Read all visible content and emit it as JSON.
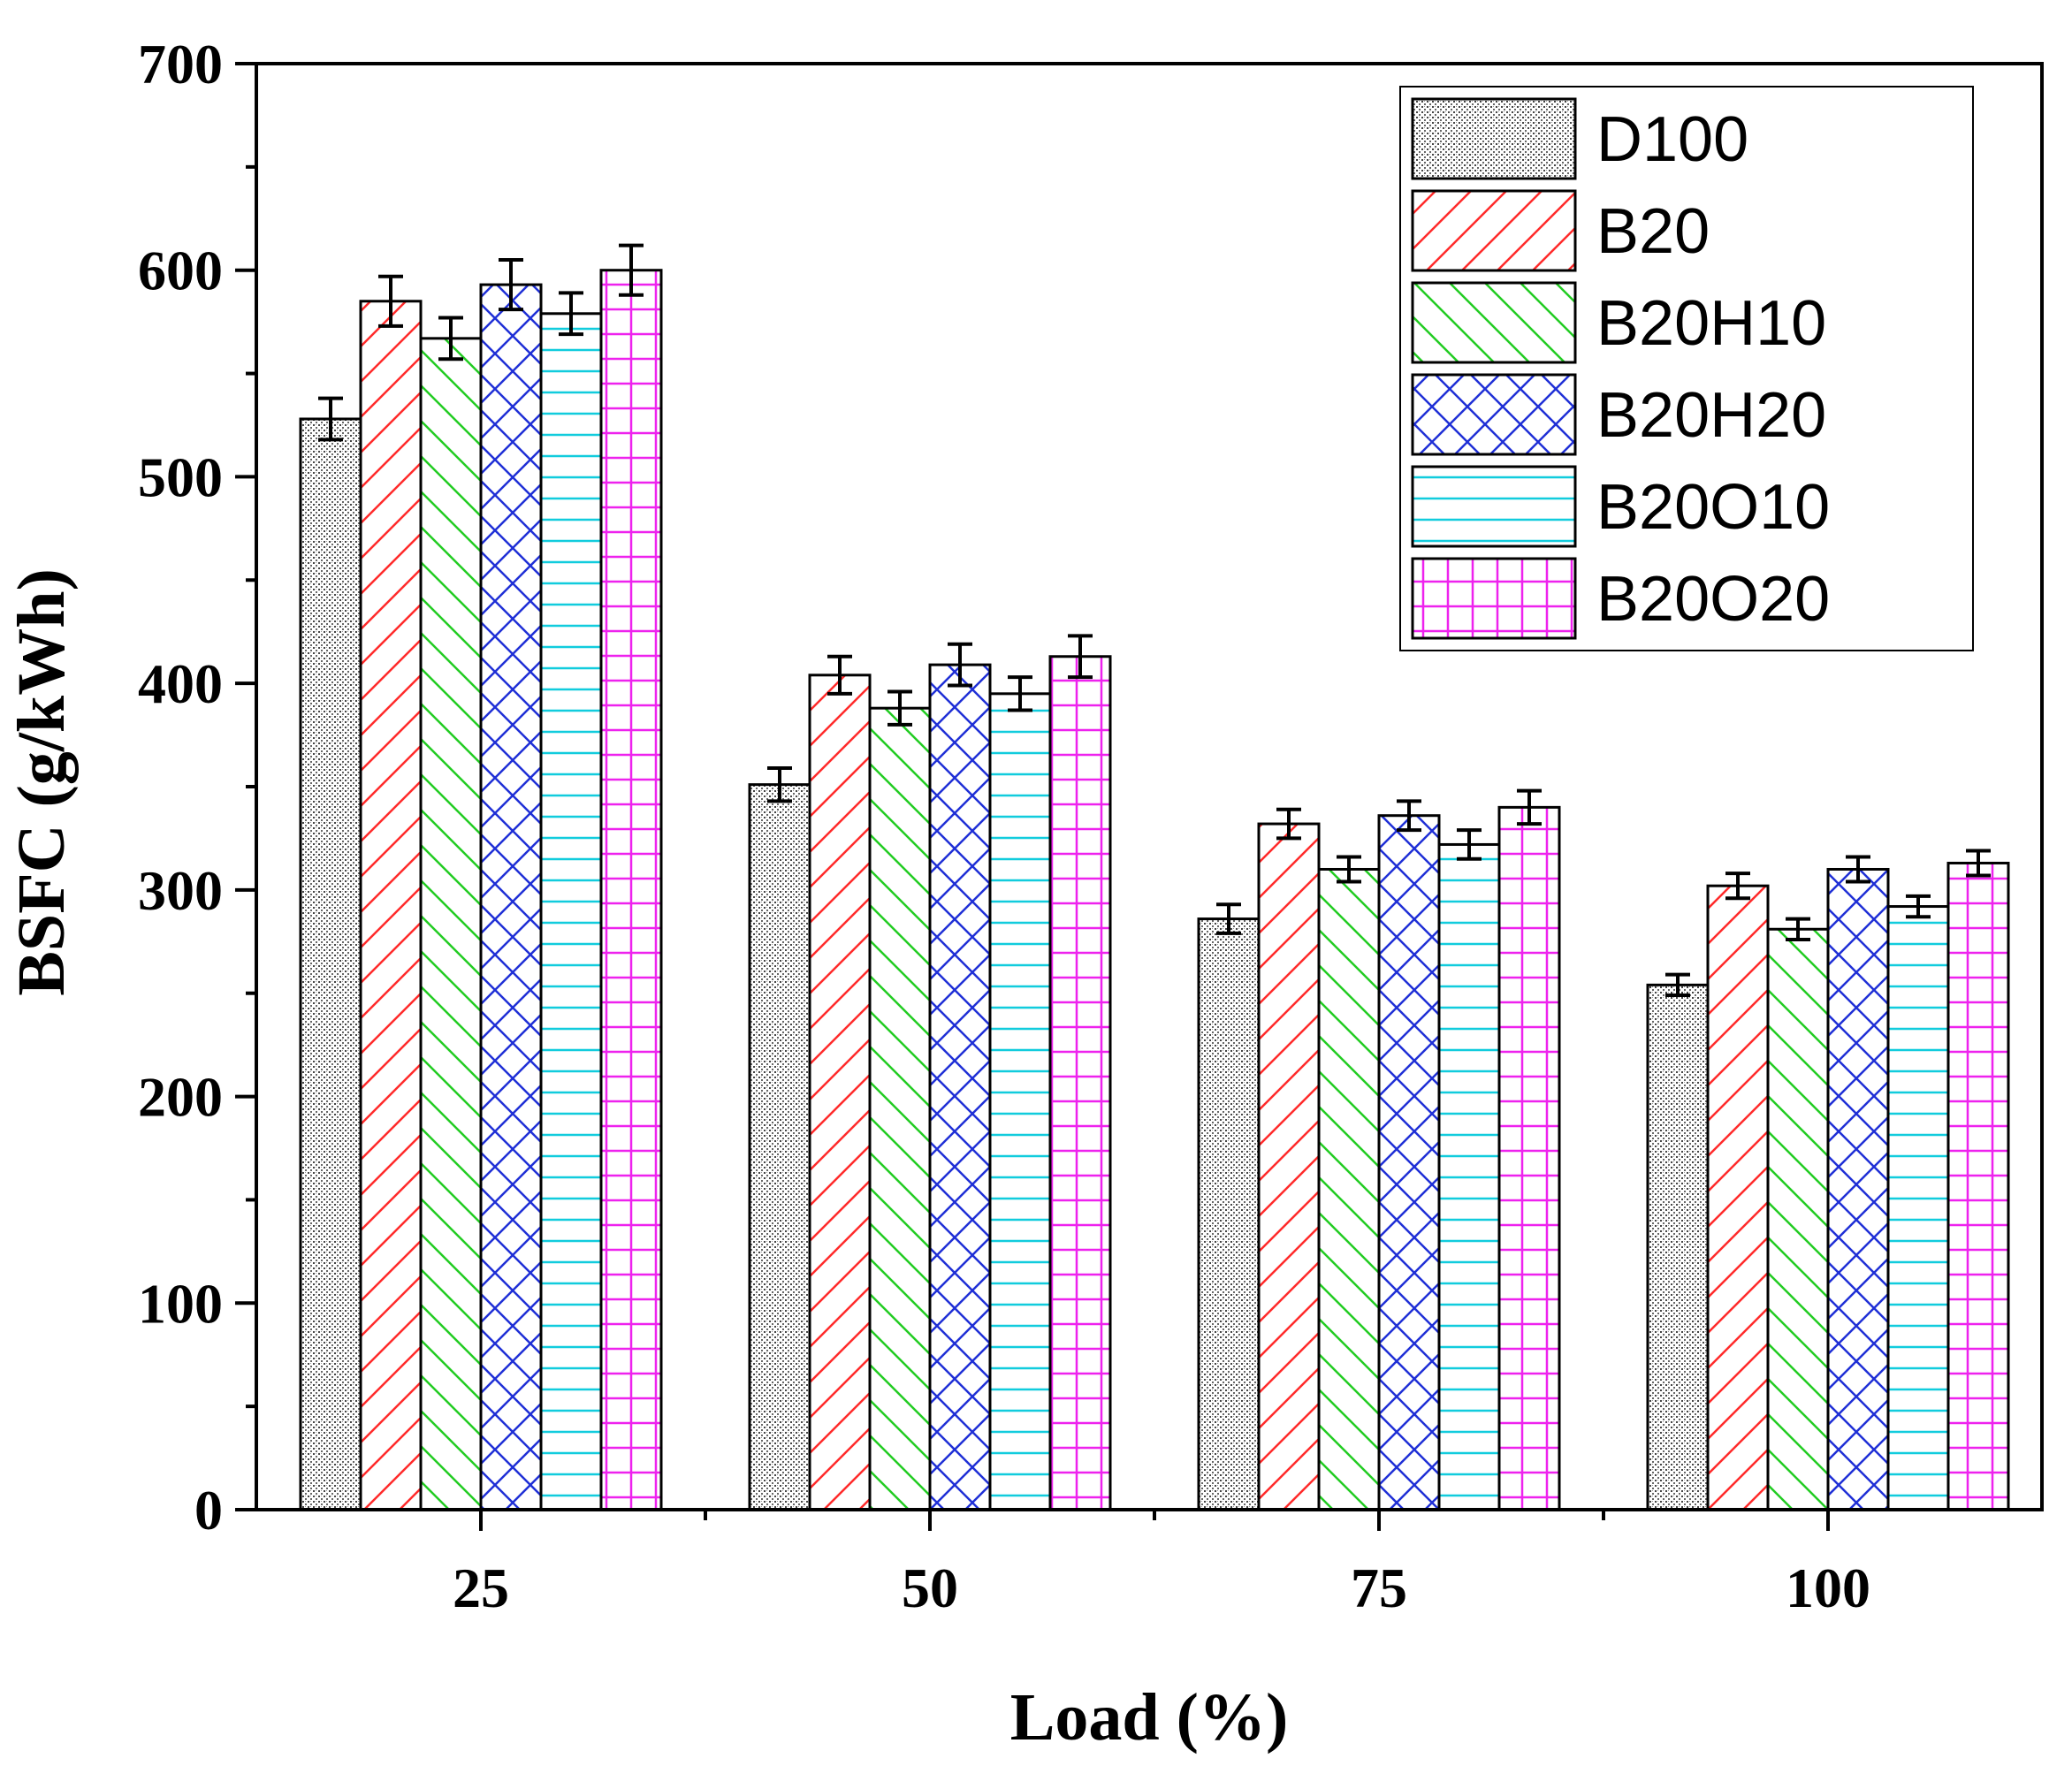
{
  "chart_data": {
    "type": "bar",
    "title": "",
    "xlabel": "Load (%)",
    "ylabel": "BSFC (g/kWh)",
    "ylim": [
      0,
      700
    ],
    "yticks": [
      0,
      100,
      200,
      300,
      400,
      500,
      600,
      700
    ],
    "categories": [
      "25",
      "50",
      "75",
      "100"
    ],
    "legend_position": "top-right",
    "series": [
      {
        "name": "D100",
        "pattern": "dots",
        "color": "#555555",
        "values": [
          528,
          351,
          286,
          254
        ],
        "errors": [
          10,
          8,
          7,
          5
        ]
      },
      {
        "name": "B20",
        "pattern": "diag-up",
        "color": "#ff2a2a",
        "values": [
          585,
          404,
          332,
          302
        ],
        "errors": [
          12,
          9,
          7,
          6
        ]
      },
      {
        "name": "B20H10",
        "pattern": "diag-down",
        "color": "#22cc22",
        "values": [
          567,
          388,
          310,
          281
        ],
        "errors": [
          10,
          8,
          6,
          5
        ]
      },
      {
        "name": "B20H20",
        "pattern": "cross",
        "color": "#1f2fd6",
        "values": [
          593,
          409,
          336,
          310
        ],
        "errors": [
          12,
          10,
          7,
          6
        ]
      },
      {
        "name": "B20O10",
        "pattern": "horiz",
        "color": "#11ccdd",
        "values": [
          579,
          395,
          322,
          292
        ],
        "errors": [
          10,
          8,
          7,
          5
        ]
      },
      {
        "name": "B20O20",
        "pattern": "grid",
        "color": "#ee22ee",
        "values": [
          600,
          413,
          340,
          313
        ],
        "errors": [
          12,
          10,
          8,
          6
        ]
      }
    ]
  }
}
